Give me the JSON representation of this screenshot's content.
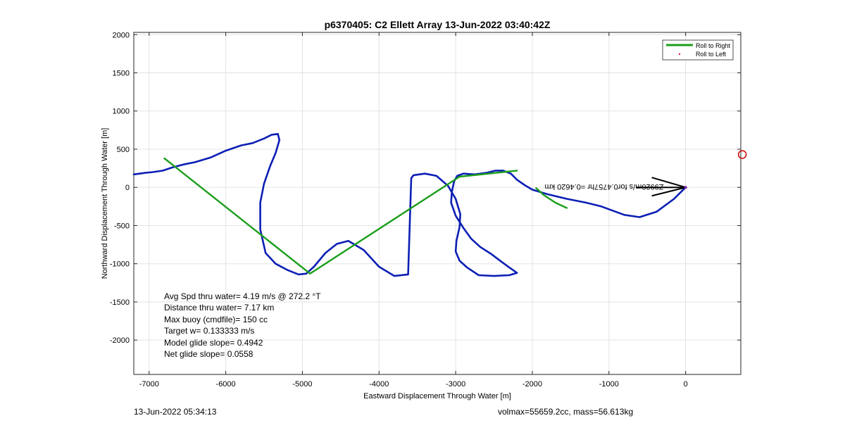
{
  "chart_data": {
    "type": "line",
    "title": "p6370405: C2 Ellett Array 13-Jun-2022 03:40:42Z",
    "xlabel": "Eastward Displacement Through Water [m]",
    "ylabel": "Northward Displacement Through Water [m]",
    "xlim": [
      -7200,
      720
    ],
    "ylim": [
      -2450,
      2030
    ],
    "xticks": [
      -7000,
      -6000,
      -5000,
      -4000,
      -3000,
      -2000,
      -1000,
      0
    ],
    "yticks": [
      2000,
      1500,
      1000,
      500,
      0,
      -500,
      -1000,
      -1500,
      -2000
    ],
    "grid": true,
    "legend_position": "top-right",
    "legend": [
      {
        "label": "Roll to Right",
        "color": "#1a9e1a",
        "style": "line"
      },
      {
        "label": "Roll to Left",
        "color": "#e0204a",
        "style": "marker"
      }
    ],
    "series": [
      {
        "color": "#0c1fb4",
        "x": [
          0,
          -150,
          -380,
          -600,
          -800,
          -1100,
          -1300,
          -1550,
          -1800,
          -2000,
          -2100,
          -2200,
          -2280,
          -2380,
          -2480,
          -2600,
          -2750,
          -2900,
          -2980,
          -3020,
          -3050,
          -3060,
          -3000,
          -2900,
          -2800,
          -2680,
          -2540,
          -2420,
          -2300,
          -2200,
          -2300,
          -2500,
          -2700,
          -2850,
          -2950,
          -3000,
          -2990,
          -2950,
          -2940,
          -3000,
          -3100,
          -3250,
          -3400,
          -3550,
          -3580,
          -3620,
          -3800,
          -4000,
          -4200,
          -4400,
          -4550,
          -4700,
          -4850,
          -4950,
          -5050,
          -5200,
          -5350,
          -5480,
          -5550,
          -5550,
          -5500,
          -5420,
          -5350,
          -5300,
          -5320,
          -5400,
          -5500,
          -5650,
          -5800,
          -6000,
          -6200,
          -6400,
          -6550,
          -6700,
          -6820,
          -6950,
          -7050,
          -7200
        ],
        "y": [
          0,
          -150,
          -320,
          -390,
          -360,
          -250,
          -200,
          -150,
          -90,
          -30,
          30,
          100,
          180,
          220,
          220,
          190,
          170,
          180,
          150,
          80,
          -60,
          -200,
          -370,
          -530,
          -670,
          -780,
          -870,
          -960,
          -1050,
          -1120,
          -1150,
          -1160,
          -1150,
          -1050,
          -960,
          -840,
          -700,
          -520,
          -350,
          -150,
          20,
          150,
          180,
          160,
          120,
          -1140,
          -1160,
          -1040,
          -820,
          -700,
          -740,
          -860,
          -1040,
          -1130,
          -1140,
          -1080,
          -1000,
          -860,
          -550,
          -200,
          50,
          280,
          450,
          620,
          700,
          690,
          640,
          580,
          550,
          480,
          390,
          330,
          300,
          260,
          220,
          200,
          190,
          170
        ]
      },
      {
        "color": "#1a9e1a",
        "x": [
          -6800,
          -4900,
          -2950,
          -2200
        ],
        "y": [
          380,
          -1130,
          140,
          220
        ]
      },
      {
        "color": "#1a9e1a",
        "x": [
          -1950,
          -1850,
          -1700,
          -1550
        ],
        "y": [
          -10,
          -100,
          -200,
          -270
        ]
      }
    ],
    "annotations": {
      "rotated_label": "Z9920m/s for0.4757hr =0.4620 km",
      "stats": [
        "Avg Spd thru water=  4.19 m/s @ 272.2 °T",
        "Distance thru water=  7.17 km",
        "Max buoy (cmdfile)= 150 cc",
        "Target w= 0.133333 m/s",
        "Model glide slope= 0.4942",
        "Net glide slope= 0.0558"
      ],
      "target_marker": {
        "x": 740,
        "y": 430,
        "color": "#cc1111"
      }
    }
  },
  "footer": {
    "left": "13-Jun-2022 05:34:13",
    "right": "volmax=55659.2cc, mass=56.613kg"
  }
}
